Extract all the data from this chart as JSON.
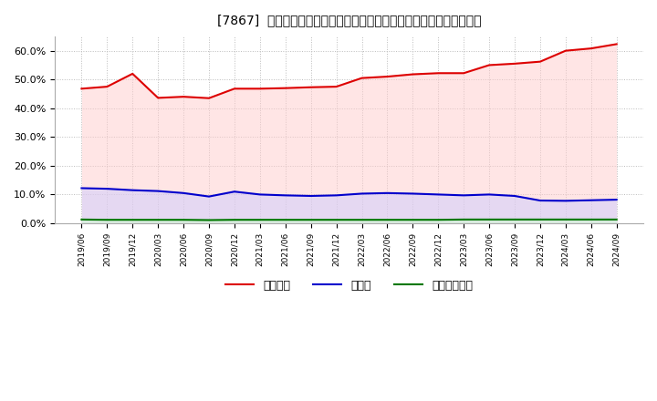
{
  "title": "[7867]  自己資本、のれん、繰延税金資産の総資産に対する比率の推移",
  "ylabel": "",
  "ylim": [
    0.0,
    0.65
  ],
  "yticks": [
    0.0,
    0.1,
    0.2,
    0.3,
    0.4,
    0.5,
    0.6
  ],
  "background_color": "#ffffff",
  "plot_bg_color": "#ffffff",
  "grid_color": "#bbbbbb",
  "legend_labels": [
    "自己資本",
    "のれん",
    "繰延税金資産"
  ],
  "line_colors": [
    "#dd0000",
    "#0000cc",
    "#007700"
  ],
  "fill_colors": [
    "#ffcccc",
    "#ccccff",
    "#ccffcc"
  ],
  "fill_alphas": [
    0.35,
    0.35,
    0.35
  ],
  "dates": [
    "2019/06",
    "2019/09",
    "2019/12",
    "2020/03",
    "2020/06",
    "2020/09",
    "2020/12",
    "2021/03",
    "2021/06",
    "2021/09",
    "2021/12",
    "2022/03",
    "2022/06",
    "2022/09",
    "2022/12",
    "2023/03",
    "2023/06",
    "2023/09",
    "2023/12",
    "2024/03",
    "2024/06",
    "2024/09"
  ],
  "equity": [
    0.468,
    0.475,
    0.52,
    0.436,
    0.44,
    0.435,
    0.468,
    0.468,
    0.47,
    0.473,
    0.475,
    0.505,
    0.51,
    0.518,
    0.522,
    0.522,
    0.55,
    0.555,
    0.562,
    0.6,
    0.608,
    0.623
  ],
  "noren": [
    0.122,
    0.12,
    0.115,
    0.112,
    0.105,
    0.093,
    0.11,
    0.1,
    0.097,
    0.095,
    0.097,
    0.103,
    0.105,
    0.103,
    0.1,
    0.097,
    0.1,
    0.095,
    0.079,
    0.078,
    0.08,
    0.082
  ],
  "deferred_tax": [
    0.013,
    0.012,
    0.012,
    0.012,
    0.012,
    0.011,
    0.012,
    0.012,
    0.012,
    0.012,
    0.012,
    0.012,
    0.012,
    0.012,
    0.012,
    0.013,
    0.013,
    0.013,
    0.013,
    0.013,
    0.013,
    0.013
  ]
}
